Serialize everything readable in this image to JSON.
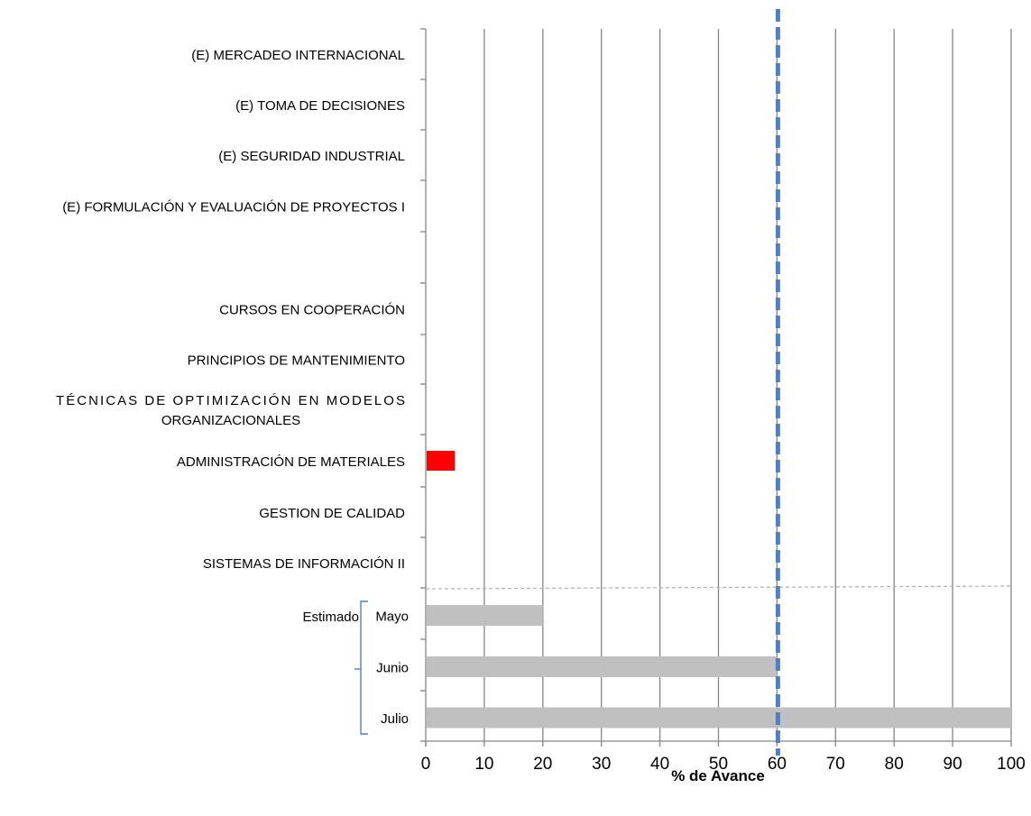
{
  "chart_data": {
    "type": "bar",
    "orientation": "horizontal",
    "xlabel": "% de Avance",
    "xlim": [
      0,
      100
    ],
    "xticks": [
      0,
      10,
      20,
      30,
      40,
      50,
      60,
      70,
      80,
      90,
      100
    ],
    "grid": "vertical",
    "reference_line": {
      "value": 60,
      "style": "dashed",
      "color": "#4f81bd"
    },
    "categories": [
      {
        "label": [
          "(E) MERCADEO INTERNACIONAL"
        ],
        "value": 0,
        "color": "#ff0000"
      },
      {
        "label": [
          "(E) TOMA DE DECISIONES"
        ],
        "value": 0,
        "color": "#ff0000"
      },
      {
        "label": [
          "(E) SEGURIDAD INDUSTRIAL"
        ],
        "value": 0,
        "color": "#ff0000"
      },
      {
        "label": [
          "(E) FORMULACIÓN Y EVALUACIÓN DE PROYECTOS I"
        ],
        "value": 0,
        "color": "#ff0000"
      },
      {
        "label": [],
        "value": null,
        "color": "#ff0000"
      },
      {
        "label": [
          "CURSOS EN COOPERACIÓN"
        ],
        "value": 0,
        "color": "#ff0000"
      },
      {
        "label": [
          "PRINCIPIOS DE MANTENIMIENTO"
        ],
        "value": 0,
        "color": "#ff0000"
      },
      {
        "label": [
          "TÉCNICAS DE OPTIMIZACIÓN EN MODELOS",
          "ORGANIZACIONALES"
        ],
        "value": 0,
        "color": "#ff0000"
      },
      {
        "label": [
          "ADMINISTRACIÓN DE MATERIALES"
        ],
        "value": 5,
        "color": "#ff0000"
      },
      {
        "label": [
          "GESTION DE CALIDAD"
        ],
        "value": 0,
        "color": "#ff0000"
      },
      {
        "label": [
          "SISTEMAS DE INFORMACIÓN II"
        ],
        "value": 0,
        "color": "#ff0000"
      },
      {
        "label": [
          "Mayo"
        ],
        "value": 20,
        "color": "#c0c0c0"
      },
      {
        "label": [
          "Junio"
        ],
        "value": 60,
        "color": "#c0c0c0"
      },
      {
        "label": [
          "Julio"
        ],
        "value": 100,
        "color": "#c0c0c0"
      }
    ],
    "estimated_group_label": "Estimado"
  }
}
